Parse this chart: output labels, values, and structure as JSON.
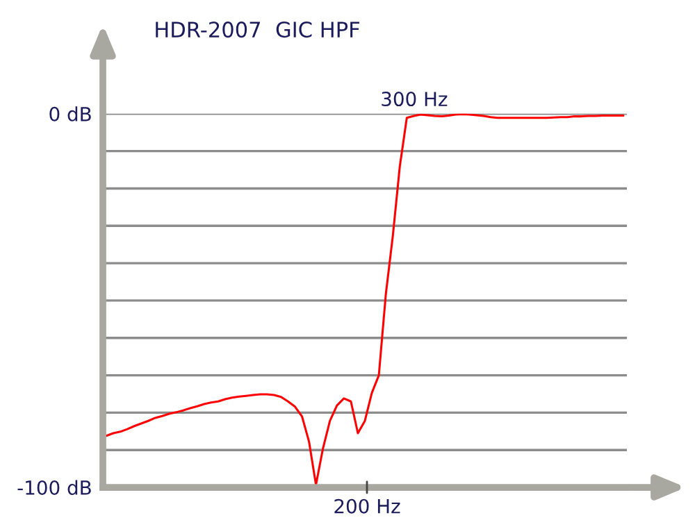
{
  "chart_data": {
    "type": "line",
    "title": "HDR-2007  GIC HPF",
    "categories": [
      null,
      null,
      null,
      null,
      null,
      null,
      null,
      null,
      null,
      null,
      null,
      null,
      null,
      null,
      null,
      null,
      null,
      null,
      null,
      null,
      null,
      null,
      null,
      null,
      null,
      null,
      null,
      null,
      null,
      null,
      null,
      null,
      null,
      null,
      null,
      null,
      null,
      null,
      null,
      null,
      null,
      null,
      null,
      null,
      null,
      null,
      null,
      null,
      null,
      null,
      null,
      null,
      null,
      null,
      null,
      null,
      null,
      null,
      null,
      null,
      null,
      null,
      null,
      null,
      null,
      null,
      null,
      null,
      null,
      null,
      null,
      null,
      null,
      null,
      null
    ],
    "series": [
      {
        "color": "#ff0000",
        "values": [
          -86.2,
          -85.5,
          -85.1,
          -84.4,
          -83.6,
          -82.9,
          -82.2,
          -81.4,
          -80.9,
          -80.3,
          -79.9,
          -79.4,
          -78.8,
          -78.3,
          -77.7,
          -77.3,
          -77.0,
          -76.4,
          -76.0,
          -75.7,
          -75.5,
          -75.3,
          -75.1,
          -75.1,
          -75.3,
          -75.8,
          -77.0,
          -78.4,
          -81.0,
          -87.7,
          -99.3,
          -89.6,
          -82.2,
          -78.1,
          -76.2,
          -77.0,
          -85.5,
          -82.2,
          -74.7,
          -70.0,
          -48.3,
          -32.7,
          -14.1,
          -1.1,
          -0.6,
          -0.2,
          -0.4,
          -0.6,
          -0.7,
          -0.5,
          -0.2,
          -0.1,
          -0.2,
          -0.4,
          -0.6,
          -0.9,
          -1.1,
          -1.1,
          -1.1,
          -1.1,
          -1.1,
          -1.1,
          -1.1,
          -1.1,
          -1.0,
          -0.9,
          -0.9,
          -0.7,
          -0.7,
          -0.6,
          -0.6,
          -0.5,
          -0.5,
          -0.5,
          -0.5
        ]
      }
    ],
    "ylim": [
      -100,
      0
    ],
    "yticks": [
      {
        "value": -100,
        "label": "-100 dB"
      },
      {
        "value": -90,
        "label": null
      },
      {
        "value": -80,
        "label": null
      },
      {
        "value": -70,
        "label": null
      },
      {
        "value": -60,
        "label": null
      },
      {
        "value": -50,
        "label": null
      },
      {
        "value": -40,
        "label": null
      },
      {
        "value": -30,
        "label": null
      },
      {
        "value": -20,
        "label": null
      },
      {
        "value": -10,
        "label": null
      },
      {
        "value": 0,
        "label": "0 dB"
      }
    ],
    "annotations": [
      "300 Hz",
      "200 Hz"
    ],
    "grid": "y",
    "line_style": "solid",
    "marker": "none"
  }
}
